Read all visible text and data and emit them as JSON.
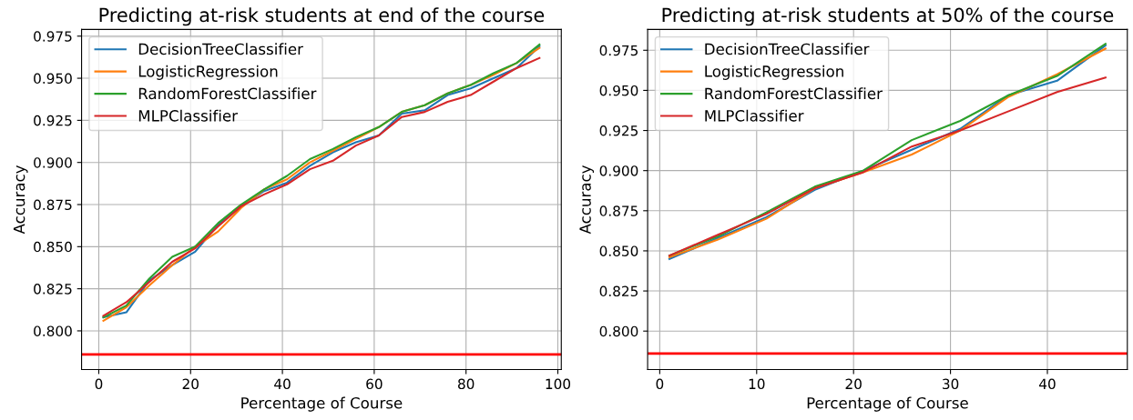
{
  "chart_data": [
    {
      "type": "line",
      "title": "Predicting at-risk students at end of the course",
      "xlabel": "Percentage of Course",
      "ylabel": "Accuracy",
      "x": [
        1,
        6,
        11,
        16,
        21,
        26,
        31,
        36,
        41,
        46,
        51,
        56,
        61,
        66,
        71,
        76,
        81,
        86,
        91,
        96
      ],
      "series": [
        {
          "name": "DecisionTreeClassifier",
          "color": "#1f77b4",
          "values": [
            0.808,
            0.811,
            0.83,
            0.839,
            0.847,
            0.863,
            0.874,
            0.883,
            0.888,
            0.898,
            0.906,
            0.912,
            0.916,
            0.929,
            0.931,
            0.94,
            0.944,
            0.95,
            0.956,
            0.969
          ]
        },
        {
          "name": "LogisticRegression",
          "color": "#ff7f0e",
          "values": [
            0.806,
            0.814,
            0.827,
            0.839,
            0.85,
            0.859,
            0.873,
            0.884,
            0.89,
            0.9,
            0.907,
            0.914,
            0.921,
            0.93,
            0.934,
            0.941,
            0.946,
            0.952,
            0.959,
            0.968
          ]
        },
        {
          "name": "RandomForestClassifier",
          "color": "#2ca02c",
          "values": [
            0.808,
            0.815,
            0.831,
            0.844,
            0.85,
            0.864,
            0.875,
            0.884,
            0.892,
            0.902,
            0.908,
            0.915,
            0.921,
            0.93,
            0.934,
            0.941,
            0.946,
            0.953,
            0.959,
            0.97
          ]
        },
        {
          "name": "MLPClassifier",
          "color": "#d62728",
          "values": [
            0.809,
            0.817,
            0.829,
            0.841,
            0.849,
            0.862,
            0.874,
            0.881,
            0.887,
            0.896,
            0.901,
            0.91,
            0.916,
            0.927,
            0.93,
            0.936,
            0.94,
            0.948,
            0.956,
            0.962
          ]
        }
      ],
      "xlim": [
        -3.75,
        100.75
      ],
      "xticks": [
        0,
        20,
        40,
        60,
        80,
        100
      ],
      "ylim": [
        0.777,
        0.979
      ],
      "yticks": [
        {
          "value": 0.8,
          "label": "0.800"
        },
        {
          "value": 0.825,
          "label": "0.825"
        },
        {
          "value": 0.85,
          "label": "0.850"
        },
        {
          "value": 0.875,
          "label": "0.875"
        },
        {
          "value": 0.9,
          "label": "0.900"
        },
        {
          "value": 0.925,
          "label": "0.925"
        },
        {
          "value": 0.95,
          "label": "0.950"
        },
        {
          "value": 0.975,
          "label": "0.975"
        }
      ],
      "ref_lines": [
        {
          "axis": "y",
          "value": 0.786,
          "color": "#ff0000"
        }
      ],
      "grid": true,
      "legend": "top left"
    },
    {
      "type": "line",
      "title": "Predicting at-risk students at 50% of the course",
      "xlabel": "Percentage of Course",
      "ylabel": "Accuracy",
      "x": [
        1,
        6,
        11,
        16,
        21,
        26,
        31,
        36,
        41,
        46
      ],
      "series": [
        {
          "name": "DecisionTreeClassifier",
          "color": "#1f77b4",
          "values": [
            0.845,
            0.858,
            0.871,
            0.888,
            0.9,
            0.913,
            0.926,
            0.947,
            0.956,
            0.978
          ]
        },
        {
          "name": "LogisticRegression",
          "color": "#ff7f0e",
          "values": [
            0.846,
            0.857,
            0.87,
            0.889,
            0.899,
            0.91,
            0.925,
            0.946,
            0.96,
            0.976
          ]
        },
        {
          "name": "RandomForestClassifier",
          "color": "#2ca02c",
          "values": [
            0.847,
            0.859,
            0.874,
            0.89,
            0.9,
            0.919,
            0.931,
            0.947,
            0.959,
            0.979
          ]
        },
        {
          "name": "MLPClassifier",
          "color": "#d62728",
          "values": [
            0.847,
            0.86,
            0.873,
            0.889,
            0.899,
            0.915,
            0.925,
            0.937,
            0.949,
            0.958
          ]
        }
      ],
      "xlim": [
        -1.25,
        48.25
      ],
      "xticks": [
        0,
        10,
        20,
        30,
        40
      ],
      "ylim": [
        0.776,
        0.988
      ],
      "yticks": [
        {
          "value": 0.8,
          "label": "0.800"
        },
        {
          "value": 0.825,
          "label": "0.825"
        },
        {
          "value": 0.85,
          "label": "0.850"
        },
        {
          "value": 0.875,
          "label": "0.875"
        },
        {
          "value": 0.9,
          "label": "0.900"
        },
        {
          "value": 0.925,
          "label": "0.925"
        },
        {
          "value": 0.95,
          "label": "0.950"
        },
        {
          "value": 0.975,
          "label": "0.975"
        }
      ],
      "ref_lines": [
        {
          "axis": "y",
          "value": 0.786,
          "color": "#ff0000"
        }
      ],
      "grid": true,
      "legend": "top left"
    }
  ]
}
